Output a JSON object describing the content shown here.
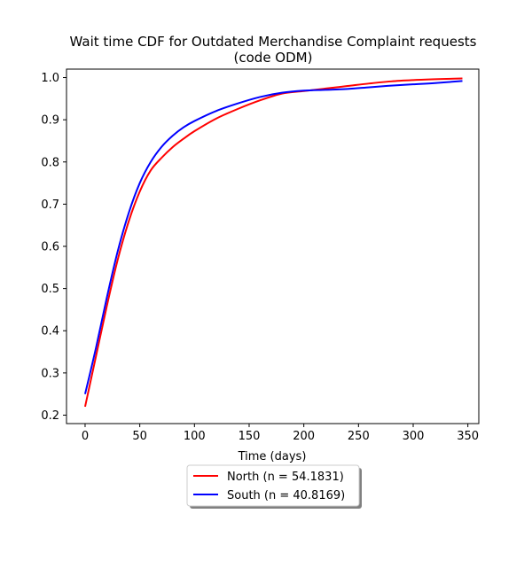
{
  "chart_data": {
    "type": "line",
    "title": "Wait time CDF for Outdated Merchandise Complaint  requests",
    "subtitle": "(code ODM)",
    "xlabel": "Time (days)",
    "ylabel": "",
    "xlim": [
      -17,
      360
    ],
    "ylim": [
      0.18,
      1.02
    ],
    "x_ticks": [
      0,
      50,
      100,
      150,
      200,
      250,
      300,
      350
    ],
    "y_ticks": [
      0.2,
      0.3,
      0.4,
      0.5,
      0.6,
      0.7,
      0.8,
      0.9,
      1.0
    ],
    "grid": false,
    "legend_position": "below-center",
    "series": [
      {
        "name": "North (n = 54.1831)",
        "color": "#ff0000",
        "x": [
          0,
          10,
          20,
          30,
          40,
          50,
          60,
          70,
          80,
          90,
          100,
          120,
          140,
          160,
          180,
          200,
          220,
          240,
          260,
          280,
          300,
          320,
          345
        ],
        "y": [
          0.22,
          0.34,
          0.46,
          0.57,
          0.66,
          0.73,
          0.78,
          0.81,
          0.835,
          0.855,
          0.873,
          0.903,
          0.926,
          0.946,
          0.962,
          0.968,
          0.974,
          0.98,
          0.986,
          0.991,
          0.994,
          0.996,
          0.998
        ]
      },
      {
        "name": "South (n = 40.8169)",
        "color": "#0000ff",
        "x": [
          0,
          10,
          20,
          30,
          40,
          50,
          60,
          70,
          80,
          90,
          100,
          120,
          140,
          160,
          180,
          200,
          220,
          240,
          260,
          280,
          300,
          320,
          345
        ],
        "y": [
          0.25,
          0.36,
          0.48,
          0.59,
          0.68,
          0.75,
          0.8,
          0.836,
          0.862,
          0.882,
          0.897,
          0.921,
          0.939,
          0.954,
          0.964,
          0.969,
          0.971,
          0.973,
          0.977,
          0.981,
          0.984,
          0.987,
          0.992
        ]
      }
    ]
  }
}
